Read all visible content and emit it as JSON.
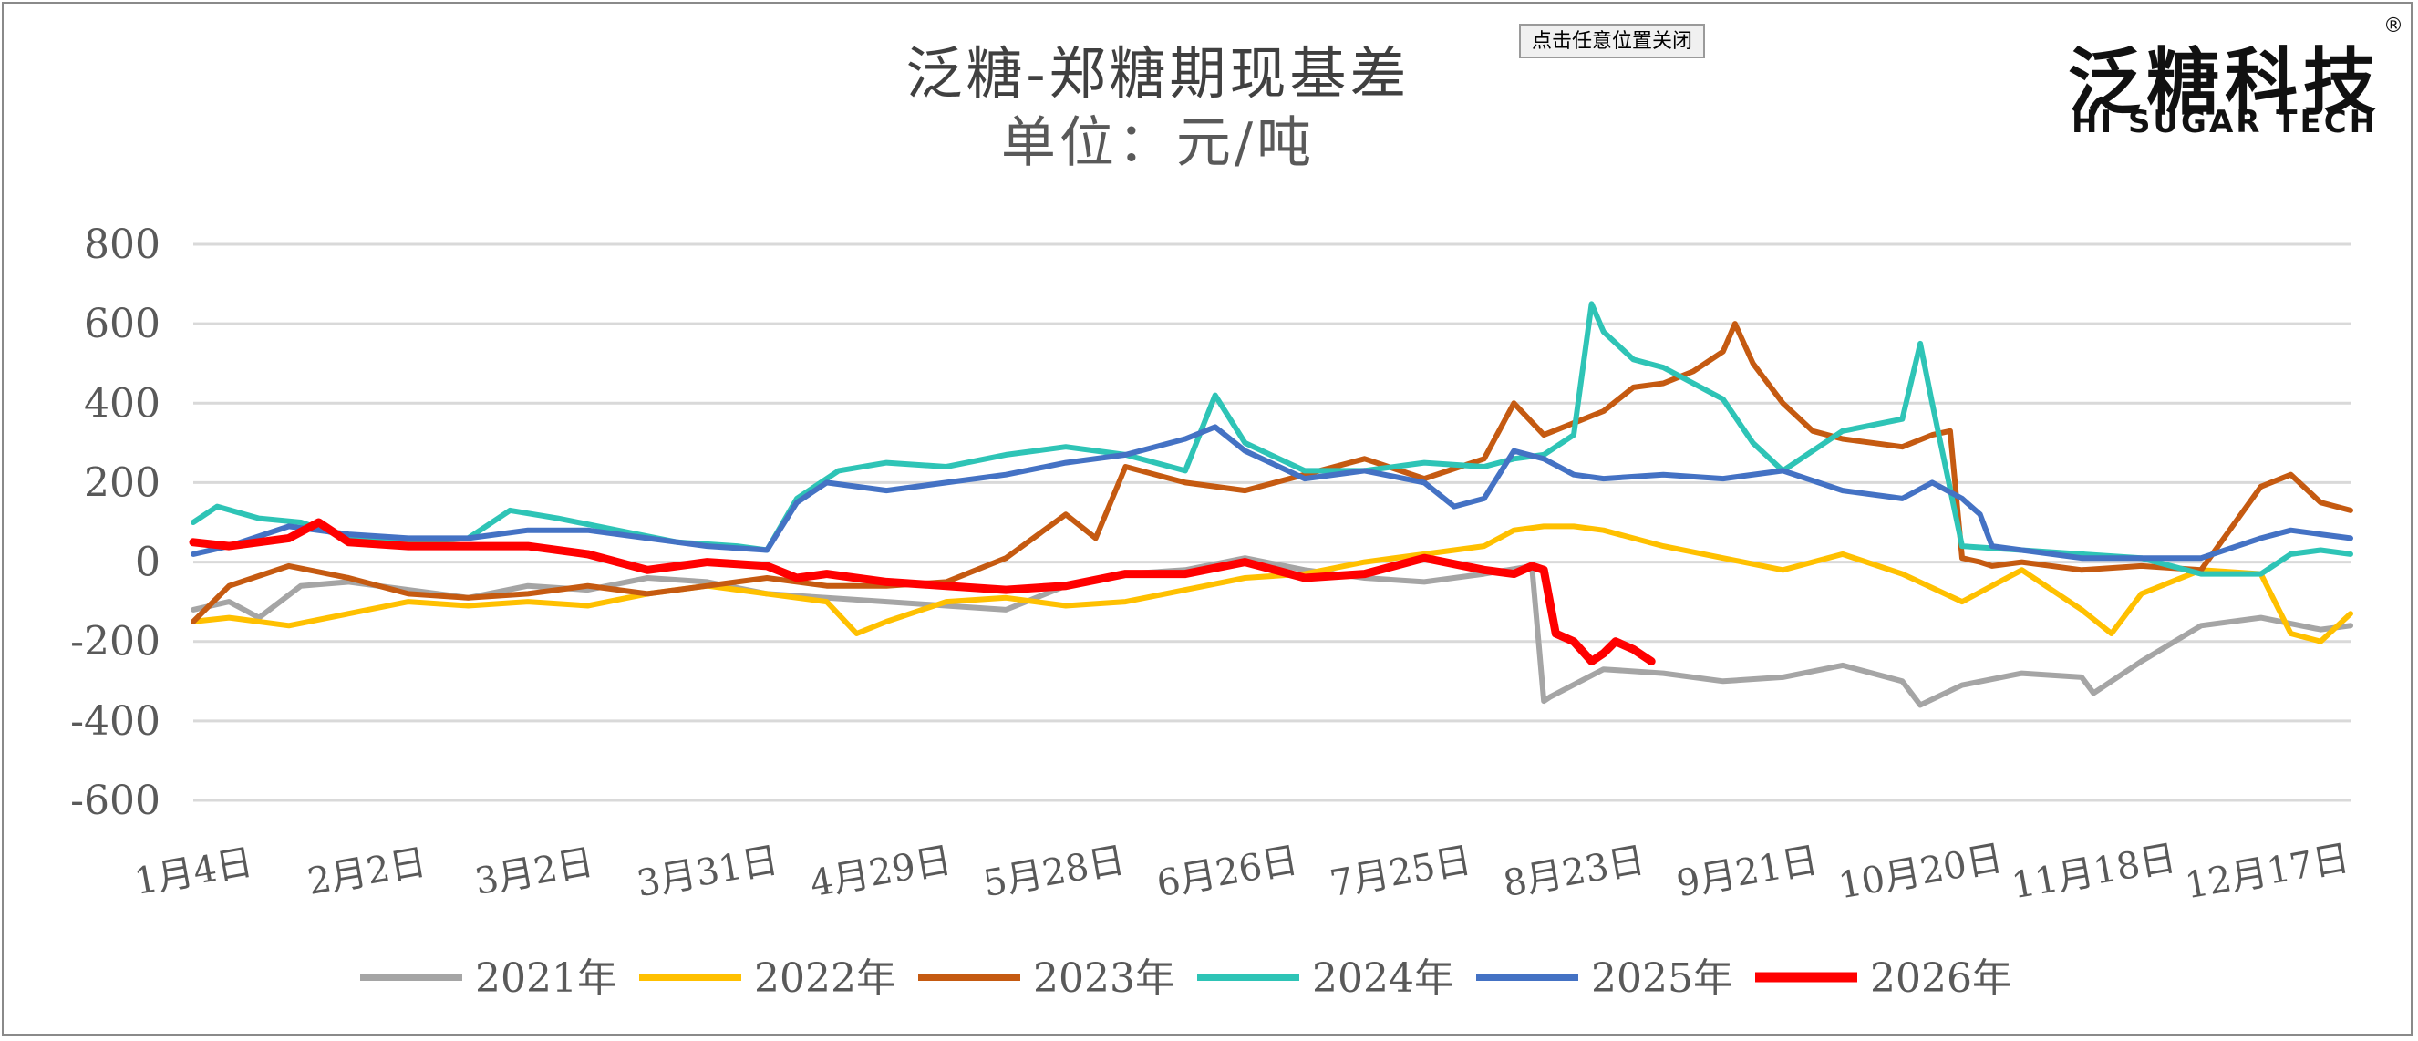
{
  "close_button": {
    "label": "点击任意位置关闭"
  },
  "logo": {
    "name_cn": "泛糖科技",
    "name_en": "HI SUGAR TECH",
    "reg": "®"
  },
  "chart_data": {
    "type": "line",
    "title": "泛糖-郑糖期现基差",
    "subtitle": "单位：元/吨",
    "xlabel": "",
    "ylabel": "",
    "ylim": [
      -600,
      800
    ],
    "yticks": [
      800,
      600,
      400,
      200,
      0,
      -200,
      -400,
      -600
    ],
    "x_range_days": [
      4,
      365
    ],
    "x_tick_labels": [
      "1月4日",
      "2月2日",
      "3月2日",
      "3月31日",
      "4月29日",
      "5月28日",
      "6月26日",
      "7月25日",
      "8月23日",
      "9月21日",
      "10月20日",
      "11月18日",
      "12月17日"
    ],
    "x_tick_days": [
      4,
      33,
      61,
      90,
      119,
      148,
      177,
      206,
      235,
      264,
      293,
      322,
      351
    ],
    "grid": true,
    "legend_position": "bottom",
    "series": [
      {
        "name": "2021年",
        "color": "#A5A5A5",
        "x": [
          4,
          10,
          15,
          22,
          30,
          40,
          50,
          60,
          70,
          80,
          90,
          100,
          110,
          120,
          130,
          140,
          150,
          160,
          170,
          180,
          190,
          200,
          210,
          220,
          228,
          230,
          231,
          240,
          250,
          260,
          270,
          280,
          290,
          293,
          300,
          310,
          320,
          322,
          330,
          340,
          350,
          360,
          365
        ],
        "y": [
          -120,
          -100,
          -140,
          -60,
          -50,
          -70,
          -90,
          -60,
          -70,
          -40,
          -50,
          -80,
          -90,
          -100,
          -110,
          -120,
          -60,
          -30,
          -20,
          10,
          -20,
          -40,
          -50,
          -30,
          -10,
          -350,
          -340,
          -270,
          -280,
          -300,
          -290,
          -260,
          -300,
          -360,
          -310,
          -280,
          -290,
          -330,
          -250,
          -160,
          -140,
          -170,
          -160
        ]
      },
      {
        "name": "2022年",
        "color": "#FFC000",
        "x": [
          4,
          10,
          20,
          30,
          40,
          50,
          60,
          70,
          80,
          90,
          100,
          110,
          115,
          120,
          130,
          140,
          150,
          160,
          170,
          180,
          190,
          200,
          210,
          220,
          225,
          230,
          235,
          240,
          250,
          260,
          270,
          280,
          290,
          300,
          310,
          320,
          325,
          330,
          340,
          350,
          355,
          360,
          365
        ],
        "y": [
          -150,
          -140,
          -160,
          -130,
          -100,
          -110,
          -100,
          -110,
          -80,
          -60,
          -80,
          -100,
          -180,
          -150,
          -100,
          -90,
          -110,
          -100,
          -70,
          -40,
          -30,
          0,
          20,
          40,
          80,
          90,
          90,
          80,
          40,
          10,
          -20,
          20,
          -30,
          -100,
          -20,
          -120,
          -180,
          -80,
          -20,
          -30,
          -180,
          -200,
          -130
        ]
      },
      {
        "name": "2023年",
        "color": "#C55A11",
        "x": [
          4,
          10,
          20,
          30,
          40,
          50,
          60,
          70,
          80,
          90,
          100,
          110,
          120,
          130,
          140,
          150,
          155,
          160,
          170,
          180,
          190,
          200,
          210,
          220,
          225,
          230,
          235,
          240,
          245,
          250,
          255,
          260,
          262,
          265,
          270,
          275,
          280,
          290,
          295,
          298,
          300,
          303,
          305,
          310,
          320,
          330,
          340,
          350,
          355,
          360,
          365
        ],
        "y": [
          -150,
          -60,
          -10,
          -40,
          -80,
          -90,
          -80,
          -60,
          -80,
          -60,
          -40,
          -60,
          -60,
          -50,
          10,
          120,
          60,
          240,
          200,
          180,
          220,
          260,
          210,
          260,
          400,
          320,
          350,
          380,
          440,
          450,
          480,
          530,
          600,
          500,
          400,
          330,
          310,
          290,
          320,
          330,
          10,
          0,
          -10,
          0,
          -20,
          -10,
          -20,
          190,
          220,
          150,
          130
        ]
      },
      {
        "name": "2024年",
        "color": "#2EC4B6",
        "x": [
          4,
          8,
          15,
          22,
          30,
          40,
          50,
          57,
          65,
          75,
          85,
          95,
          100,
          105,
          112,
          120,
          130,
          140,
          150,
          160,
          165,
          170,
          175,
          180,
          190,
          200,
          210,
          220,
          225,
          230,
          235,
          238,
          240,
          245,
          250,
          260,
          265,
          270,
          280,
          290,
          293,
          295,
          300,
          310,
          320,
          330,
          340,
          350,
          355,
          360,
          365
        ],
        "y": [
          100,
          140,
          110,
          100,
          60,
          50,
          60,
          130,
          110,
          80,
          50,
          40,
          30,
          160,
          230,
          250,
          240,
          270,
          290,
          270,
          250,
          230,
          420,
          300,
          230,
          230,
          250,
          240,
          260,
          270,
          320,
          650,
          580,
          510,
          490,
          410,
          300,
          230,
          330,
          360,
          550,
          400,
          40,
          30,
          20,
          10,
          -30,
          -30,
          20,
          30,
          20
        ]
      },
      {
        "name": "2025年",
        "color": "#4472C4",
        "x": [
          4,
          10,
          20,
          30,
          40,
          50,
          60,
          70,
          80,
          90,
          100,
          105,
          110,
          120,
          130,
          140,
          150,
          160,
          170,
          175,
          180,
          190,
          200,
          210,
          215,
          220,
          225,
          230,
          235,
          240,
          250,
          260,
          270,
          280,
          290,
          295,
          300,
          303,
          305,
          310,
          320,
          330,
          340,
          350,
          355,
          360,
          365
        ],
        "y": [
          20,
          40,
          90,
          70,
          60,
          60,
          80,
          80,
          60,
          40,
          30,
          150,
          200,
          180,
          200,
          220,
          250,
          270,
          310,
          340,
          280,
          210,
          230,
          200,
          140,
          160,
          280,
          260,
          220,
          210,
          220,
          210,
          230,
          180,
          160,
          200,
          160,
          120,
          40,
          30,
          10,
          10,
          10,
          60,
          80,
          70,
          60
        ]
      },
      {
        "name": "2026年",
        "color": "#FF0000",
        "x": [
          4,
          10,
          20,
          25,
          30,
          40,
          50,
          60,
          70,
          80,
          90,
          100,
          105,
          110,
          120,
          130,
          140,
          150,
          160,
          170,
          180,
          190,
          200,
          210,
          220,
          225,
          228,
          230,
          232,
          235,
          238,
          240,
          242,
          245,
          248
        ],
        "y": [
          50,
          40,
          60,
          100,
          50,
          40,
          40,
          40,
          20,
          -20,
          0,
          -10,
          -40,
          -30,
          -50,
          -60,
          -70,
          -60,
          -30,
          -30,
          0,
          -40,
          -30,
          10,
          -20,
          -30,
          -10,
          -20,
          -180,
          -200,
          -250,
          -230,
          -200,
          -220,
          -250
        ]
      }
    ]
  }
}
